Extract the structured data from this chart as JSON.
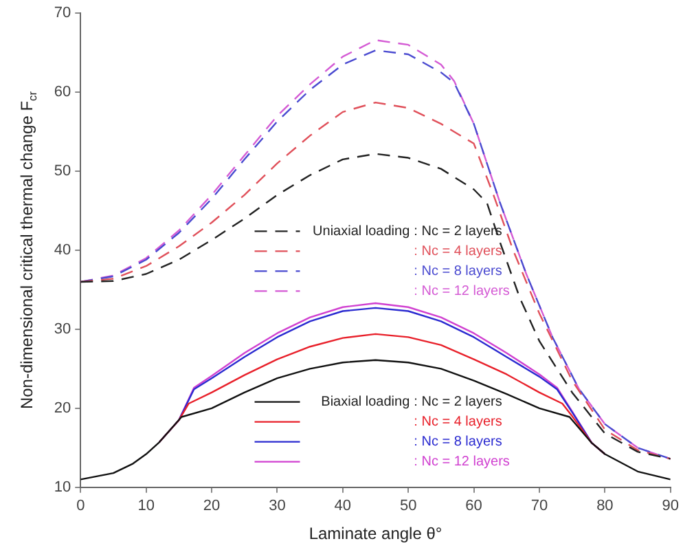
{
  "chart_data": {
    "type": "line",
    "xlabel": "Laminate angle θ°",
    "ylabel": "Non-dimensional critical thermal change F$_{cr}$",
    "xlim": [
      0,
      90
    ],
    "ylim": [
      10,
      70
    ],
    "xticks": [
      0,
      10,
      20,
      30,
      40,
      50,
      60,
      70,
      80,
      90
    ],
    "yticks": [
      10,
      20,
      30,
      40,
      50,
      60,
      70
    ],
    "grid": false,
    "legend": "center",
    "marker": "none",
    "series": [
      {
        "name": "Uniaxial loading : Nc = 2 layers",
        "color": "#222222",
        "line_style": "dashed",
        "x": [
          0,
          5,
          10,
          15,
          20,
          25,
          30,
          35,
          40,
          45,
          50,
          55,
          60,
          62,
          64,
          67,
          70,
          75,
          80,
          85,
          90
        ],
        "values": [
          36,
          36.1,
          37,
          38.8,
          41.3,
          44,
          47,
          49.5,
          51.5,
          52.2,
          51.7,
          50.3,
          47.7,
          46,
          41,
          34,
          28.5,
          22,
          16.8,
          14.5,
          13.6
        ]
      },
      {
        "name": ": Nc = 4 layers",
        "color": "#e0505a",
        "line_style": "dashed",
        "x": [
          0,
          5,
          10,
          15,
          20,
          25,
          30,
          35,
          40,
          45,
          50,
          55,
          60,
          63,
          66,
          70,
          75,
          80,
          85,
          90
        ],
        "values": [
          36,
          36.4,
          38,
          40.5,
          43.5,
          47,
          51,
          54.5,
          57.5,
          58.7,
          58,
          56,
          53.5,
          47,
          40,
          32,
          23.5,
          17.3,
          14.7,
          13.6
        ]
      },
      {
        "name": ": Nc = 8 layers",
        "color": "#4a4ad0",
        "line_style": "dashed",
        "x": [
          0,
          5,
          10,
          15,
          20,
          25,
          30,
          35,
          40,
          45,
          50,
          55,
          57,
          60,
          64,
          68,
          72,
          76,
          80,
          85,
          90
        ],
        "values": [
          36,
          36.7,
          38.8,
          42.2,
          46.5,
          51.5,
          56.3,
          60.3,
          63.5,
          65.3,
          64.8,
          62.5,
          61.2,
          56,
          46,
          37,
          29,
          22.5,
          18,
          15,
          13.6
        ]
      },
      {
        "name": ": Nc = 12 layers",
        "color": "#d45ad4",
        "line_style": "dashed",
        "x": [
          0,
          5,
          10,
          15,
          20,
          25,
          30,
          35,
          40,
          45,
          50,
          55,
          57,
          60,
          64,
          68,
          72,
          76,
          80,
          85,
          90
        ],
        "values": [
          36,
          36.8,
          39,
          42.5,
          47,
          52,
          57,
          61,
          64.5,
          66.6,
          66,
          63.5,
          61.4,
          56,
          46,
          37,
          29,
          22.5,
          18,
          15,
          13.6
        ]
      },
      {
        "name": "Biaxial loading  : Nc = 2 layers",
        "color": "#111111",
        "line_style": "solid",
        "x": [
          0,
          5,
          8,
          10,
          12,
          15.4,
          20,
          25,
          30,
          35,
          40,
          45,
          50,
          55,
          60,
          65,
          70,
          74.6,
          78,
          80,
          85,
          90
        ],
        "values": [
          11,
          11.8,
          13,
          14.2,
          15.7,
          18.9,
          20,
          22,
          23.8,
          25,
          25.8,
          26.1,
          25.8,
          25,
          23.5,
          21.8,
          20,
          18.9,
          15.6,
          14.2,
          12,
          11
        ]
      },
      {
        "name": ": Nc = 4 layers",
        "color": "#e8202a",
        "line_style": "solid",
        "x": [
          12,
          15,
          16.5,
          20,
          25,
          30,
          35,
          40,
          45,
          50,
          55,
          60,
          65,
          70,
          73.5,
          75,
          78,
          80
        ],
        "values": [
          15.7,
          18.5,
          20.6,
          22,
          24.2,
          26.2,
          27.8,
          28.9,
          29.4,
          29,
          28,
          26.2,
          24.3,
          22,
          20.6,
          19,
          15.6,
          14.2
        ]
      },
      {
        "name": ": Nc = 8 layers",
        "color": "#2a2ad0",
        "line_style": "solid",
        "x": [
          12,
          15,
          17.3,
          20,
          25,
          30,
          35,
          40,
          45,
          50,
          55,
          60,
          65,
          70,
          72.7,
          75,
          78,
          80
        ],
        "values": [
          15.7,
          18.5,
          22.4,
          23.8,
          26.5,
          29,
          31,
          32.3,
          32.7,
          32.3,
          31,
          29,
          26.5,
          24,
          22.4,
          19.5,
          15.6,
          14.2
        ]
      },
      {
        "name": ": Nc = 12 layers",
        "color": "#d040d0",
        "line_style": "solid",
        "x": [
          12,
          15,
          17.3,
          20,
          25,
          30,
          35,
          40,
          45,
          50,
          55,
          60,
          65,
          70,
          72.7,
          75,
          78,
          80
        ],
        "values": [
          15.7,
          18.5,
          22.6,
          24.1,
          27,
          29.5,
          31.5,
          32.8,
          33.3,
          32.8,
          31.5,
          29.5,
          27,
          24.3,
          22.6,
          19.6,
          15.6,
          14.2
        ]
      }
    ]
  }
}
